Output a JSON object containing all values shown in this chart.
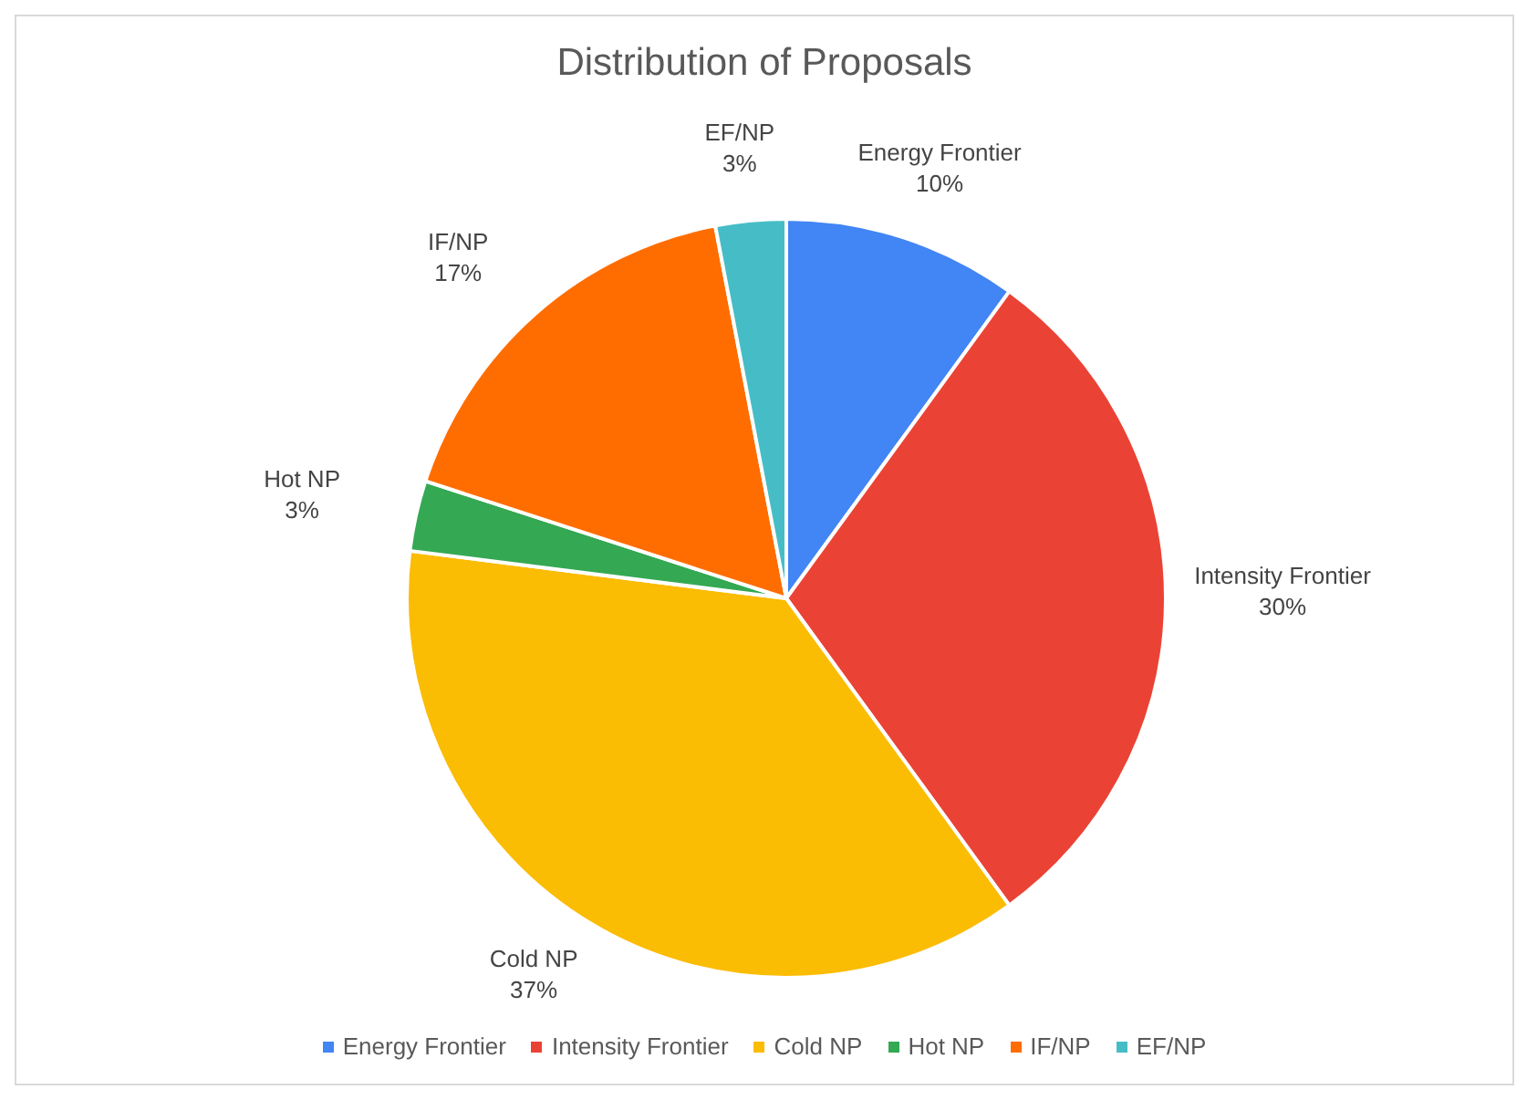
{
  "chart_data": {
    "type": "pie",
    "title": "Distribution of Proposals",
    "categories": [
      "Energy Frontier",
      "Intensity Frontier",
      "Cold NP",
      "Hot NP",
      "IF/NP",
      "EF/NP"
    ],
    "values": [
      10,
      30,
      37,
      3,
      17,
      3
    ],
    "value_labels": [
      "10%",
      "30%",
      "37%",
      "3%",
      "17%",
      "3%"
    ],
    "colors": [
      "#4285f4",
      "#ea4335",
      "#fbbc04",
      "#34a853",
      "#ff6d01",
      "#46bdc6"
    ],
    "legend": "bottom"
  }
}
